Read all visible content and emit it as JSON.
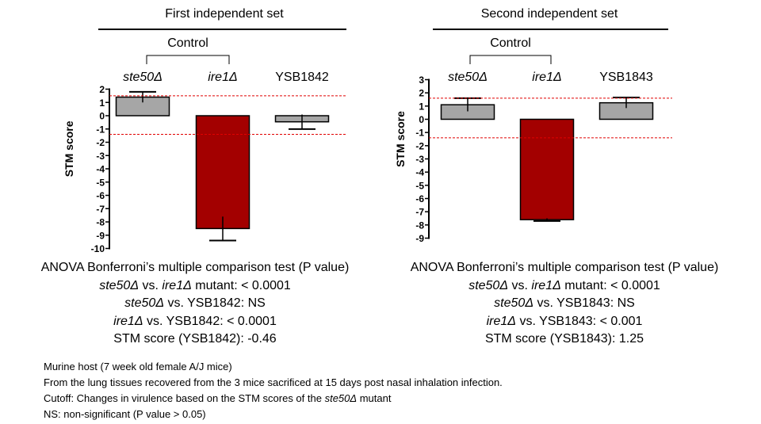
{
  "chart_data": [
    {
      "type": "bar",
      "title": "First independent set",
      "control_label": "Control",
      "categories": [
        "ste50Δ",
        "ire1Δ",
        "YSB1842"
      ],
      "values": [
        1.4,
        -8.5,
        -0.46
      ],
      "errors": [
        0.4,
        0.9,
        0.55
      ],
      "bar_colors": [
        "#a6a6a6",
        "#a30000",
        "#a6a6a6"
      ],
      "cutoff": [
        1.5,
        -1.4
      ],
      "ylabel": "STM score",
      "ylim": [
        -10,
        2
      ],
      "yticks": [
        2,
        1,
        0,
        -1,
        -2,
        -3,
        -4,
        -5,
        -6,
        -7,
        -8,
        -9,
        -10
      ],
      "grid": false,
      "legend": "none"
    },
    {
      "type": "bar",
      "title": "Second independent set",
      "control_label": "Control",
      "categories": [
        "ste50Δ",
        "ire1Δ",
        "YSB1843"
      ],
      "values": [
        1.1,
        -7.6,
        1.25
      ],
      "errors": [
        0.5,
        0.1,
        0.4
      ],
      "bar_colors": [
        "#a6a6a6",
        "#a30000",
        "#a6a6a6"
      ],
      "cutoff": [
        1.6,
        -1.4
      ],
      "ylabel": "STM score",
      "ylim": [
        -9,
        3
      ],
      "yticks": [
        3,
        2,
        1,
        0,
        -1,
        -2,
        -3,
        -4,
        -5,
        -6,
        -7,
        -8,
        -9
      ],
      "grid": false,
      "legend": "none"
    }
  ],
  "colors": {
    "cutoff_line": "#e00000",
    "gray_bar": "#a6a6a6",
    "red_bar": "#a30000"
  },
  "stats": [
    {
      "header": "ANOVA Bonferroni’s multiple comparison test (P value)",
      "l1_a": "ste50Δ",
      "l1_b": " vs. ",
      "l1_c": "ire1Δ",
      "l1_d": " mutant: < 0.0001",
      "l2_a": "ste50Δ",
      "l2_b": " vs. YSB1842: NS",
      "l3_a": "ire1Δ",
      "l3_b": " vs. YSB1842: < 0.0001",
      "l4": "STM score (YSB1842): -0.46"
    },
    {
      "header": "ANOVA Bonferroni’s multiple comparison test (P value)",
      "l1_a": "ste50Δ",
      "l1_b": " vs. ",
      "l1_c": "ire1Δ",
      "l1_d": " mutant: < 0.0001",
      "l2_a": "ste50Δ",
      "l2_b": " vs. YSB1843: NS",
      "l3_a": "ire1Δ",
      "l3_b": " vs. YSB1843: < 0.001",
      "l4": "STM score (YSB1843): 1.25"
    }
  ],
  "notes": {
    "line1": "Murine host (7 week old female A/J mice)",
    "line2": "From  the lung tissues recovered from the 3 mice sacrificed at 15 days post nasal inhalation infection.",
    "line3_a": "Cutoff: Changes in virulence based on the STM scores of the ",
    "line3_b": "ste50Δ",
    "line3_c": " mutant",
    "line4": "NS: non-significant (P value > 0.05)"
  }
}
